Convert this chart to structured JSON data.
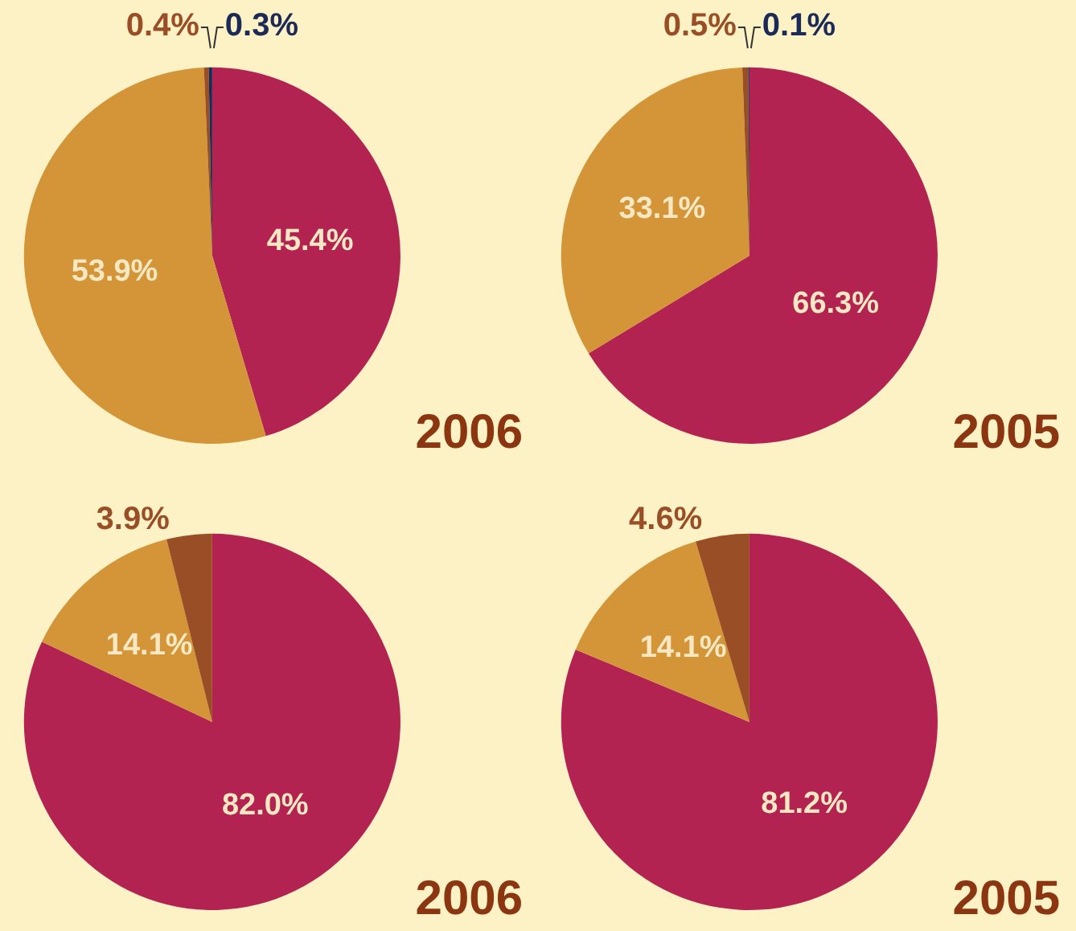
{
  "chart_data": [
    {
      "type": "pie",
      "title": "2006",
      "categories": [
        null,
        null,
        null,
        null
      ],
      "values": [
        45.4,
        53.9,
        0.4,
        0.3
      ],
      "colors": [
        "#b32352",
        "#d39537",
        "#9a4e26",
        "#1b2a56"
      ],
      "value_labels": [
        "45.4%",
        "53.9%",
        "0.4%",
        "0.3%"
      ]
    },
    {
      "type": "pie",
      "title": "2005",
      "categories": [
        null,
        null,
        null,
        null
      ],
      "values": [
        66.3,
        33.1,
        0.5,
        0.1
      ],
      "colors": [
        "#b32352",
        "#d39537",
        "#9a4e26",
        "#1b2a56"
      ],
      "value_labels": [
        "66.3%",
        "33.1%",
        "0.5%",
        "0.1%"
      ]
    },
    {
      "type": "pie",
      "title": "2006",
      "categories": [
        null,
        null,
        null
      ],
      "values": [
        82.0,
        14.1,
        3.9
      ],
      "colors": [
        "#b32352",
        "#d39537",
        "#9a4e26"
      ],
      "value_labels": [
        "82.0%",
        "14.1%",
        "3.9%"
      ]
    },
    {
      "type": "pie",
      "title": "2005",
      "categories": [
        null,
        null,
        null
      ],
      "values": [
        81.2,
        14.1,
        4.6
      ],
      "colors": [
        "#b32352",
        "#d39537",
        "#9a4e26"
      ],
      "value_labels": [
        "81.2%",
        "14.1%",
        "4.6%"
      ]
    }
  ]
}
